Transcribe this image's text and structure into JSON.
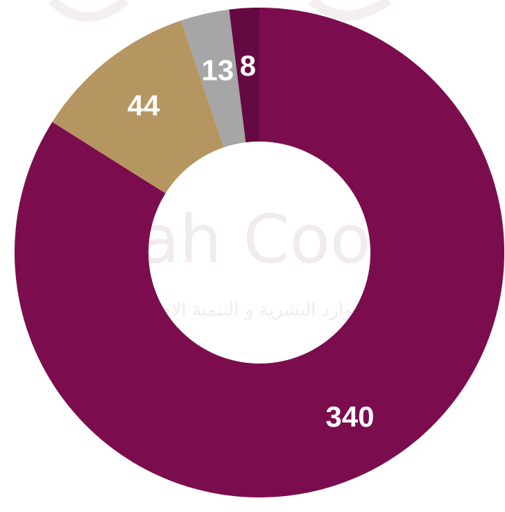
{
  "watermark": {
    "latin": "ah Cooper",
    "arabic": "للموارد البشرية و التنمية الاجتماعية"
  },
  "chart_data": {
    "type": "donut",
    "title": "",
    "values": [
      340,
      44,
      13,
      8
    ],
    "labels": [
      "340",
      "44",
      "13",
      "8"
    ],
    "colors": [
      "#7b0d4f",
      "#b69660",
      "#a6a6a6",
      "#650943"
    ],
    "start_angle_deg": 0,
    "direction": "clockwise",
    "legend": "none"
  }
}
